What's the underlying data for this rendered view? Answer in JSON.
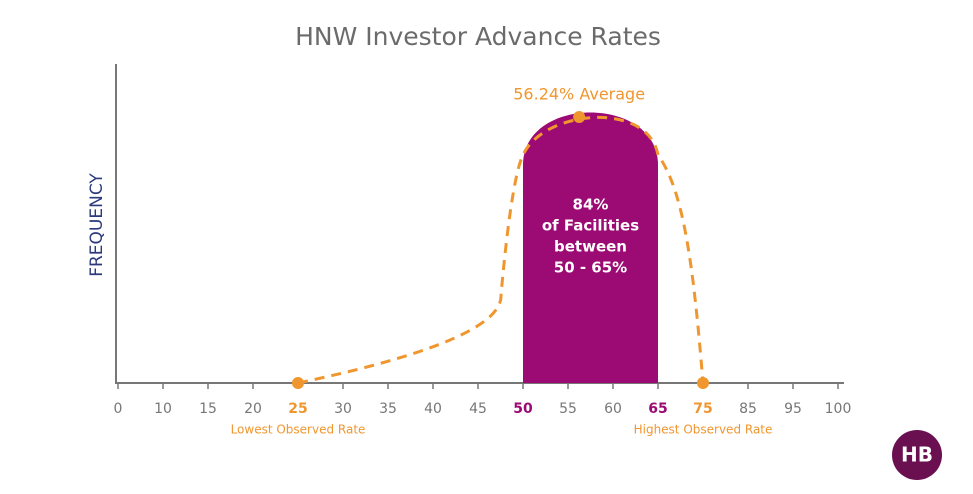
{
  "chart_data": {
    "type": "distribution",
    "title": "HNW Investor Advance Rates",
    "y_label": "FREQUENCY",
    "xticks": [
      0,
      10,
      15,
      20,
      25,
      30,
      35,
      40,
      45,
      50,
      55,
      60,
      65,
      75,
      85,
      95,
      100
    ],
    "average": {
      "value": 56.24,
      "label": "56.24% Average"
    },
    "range": [
      50,
      65
    ],
    "range_label": [
      "84%",
      "of Facilities",
      "between",
      "50 - 65%"
    ],
    "lowest": {
      "value": 25,
      "label": "Lowest Observed Rate"
    },
    "highest": {
      "value": 75,
      "label": "Highest Observed Rate"
    },
    "colors": {
      "range": "#9c0a73",
      "curve": "#f0962e"
    }
  },
  "logo": "HB"
}
